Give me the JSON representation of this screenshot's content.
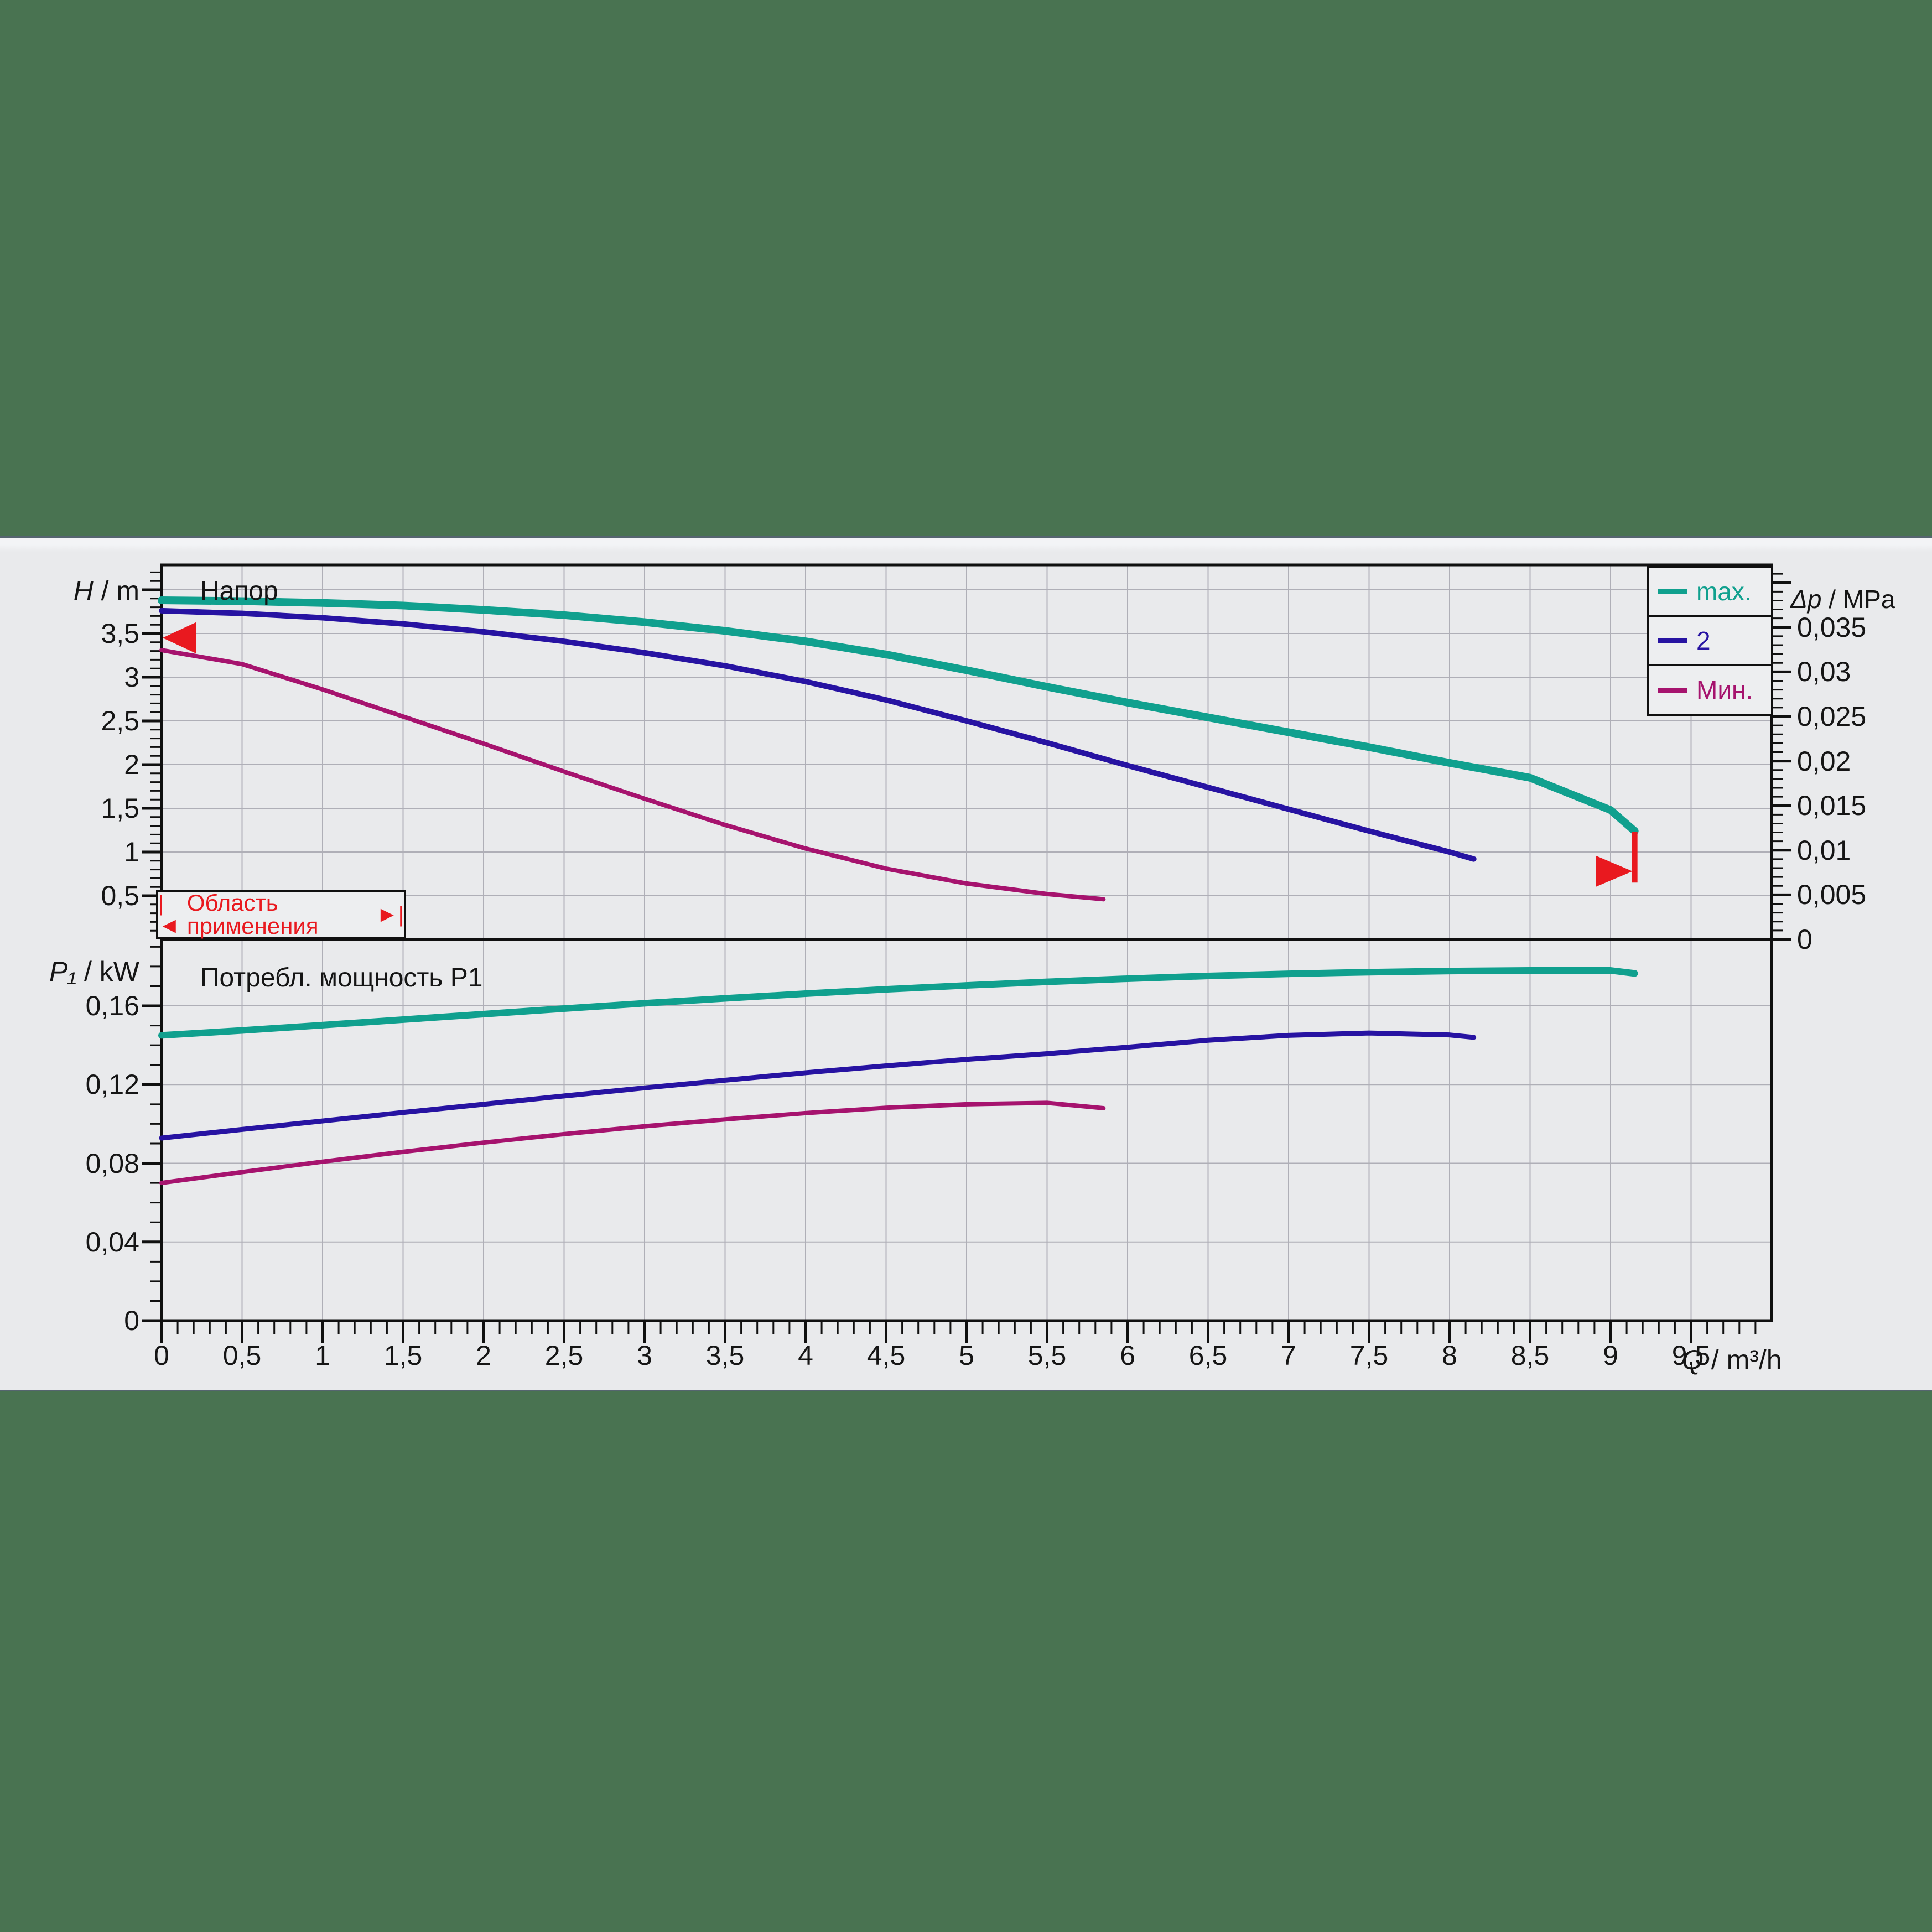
{
  "background_color": "#497351",
  "band_color": "#E9EAEC",
  "band_edge_color": "#55656F",
  "colors": {
    "max": "#10A08E",
    "mid": "#2713A2",
    "min": "#A6136E",
    "red": "#E9191F",
    "grid": "#AFAFB7",
    "axis": "#101010",
    "text": "#151515"
  },
  "legend": {
    "items": [
      {
        "id": "max",
        "label": "max."
      },
      {
        "id": "mid",
        "label": "2"
      },
      {
        "id": "min",
        "label": "Мин."
      }
    ]
  },
  "x_axis": {
    "title_var": "Q",
    "title_unit": " / m³/h",
    "min": 0,
    "max": 10,
    "major_step": 0.5,
    "minor_step": 0.1,
    "tick_values": [
      0,
      0.5,
      1,
      1.5,
      2,
      2.5,
      3,
      3.5,
      4,
      4.5,
      5,
      5.5,
      6,
      6.5,
      7,
      7.5,
      8,
      8.5,
      9,
      9.5
    ],
    "tick_labels": [
      "0",
      "0,5",
      "1",
      "1,5",
      "2",
      "2,5",
      "3",
      "3,5",
      "4",
      "4,5",
      "5",
      "5,5",
      "6",
      "6,5",
      "7",
      "7,5",
      "8",
      "8,5",
      "9",
      "9,5"
    ]
  },
  "chart_data": [
    {
      "id": "head",
      "type": "line",
      "title": "Напор",
      "xlabel": "Q / m³/h",
      "ylabel": "H / m",
      "y2label": "Δp / MPa",
      "xlim": [
        0,
        10
      ],
      "ylim": [
        0,
        4.28
      ],
      "y2lim": [
        0,
        0.0417
      ],
      "grid": "on",
      "y_axis": {
        "title_var": "H",
        "title_unit": " / m",
        "major_step": 0.5,
        "minor_step": 0.1,
        "max": 4.2,
        "grid_step": 0.5,
        "tick_values": [
          0.5,
          1,
          1.5,
          2,
          2.5,
          3,
          3.5
        ],
        "tick_labels": [
          "0,5",
          "1",
          "1,5",
          "2",
          "2,5",
          "3",
          "3,5"
        ]
      },
      "y2_axis": {
        "title_var": "Δp",
        "title_unit": " / MPa",
        "major_step": 0.005,
        "minor_step": 0.001,
        "max": 0.041,
        "tick_values": [
          0,
          0.005,
          0.01,
          0.015,
          0.02,
          0.025,
          0.03,
          0.035
        ],
        "tick_labels": [
          "0",
          "0,005",
          "0,01",
          "0,015",
          "0,02",
          "0,025",
          "0,03",
          "0,035"
        ]
      },
      "series": [
        {
          "id": "max",
          "name": "max.",
          "points": [
            [
              0,
              3.88
            ],
            [
              0.5,
              3.87
            ],
            [
              1,
              3.85
            ],
            [
              1.5,
              3.82
            ],
            [
              2,
              3.77
            ],
            [
              2.5,
              3.71
            ],
            [
              3,
              3.63
            ],
            [
              3.5,
              3.53
            ],
            [
              4,
              3.41
            ],
            [
              4.5,
              3.26
            ],
            [
              5,
              3.08
            ],
            [
              5.5,
              2.89
            ],
            [
              6,
              2.71
            ],
            [
              6.5,
              2.54
            ],
            [
              7,
              2.37
            ],
            [
              7.5,
              2.2
            ],
            [
              8,
              2.02
            ],
            [
              8.5,
              1.85
            ],
            [
              9,
              1.48
            ],
            [
              9.15,
              1.24
            ]
          ]
        },
        {
          "id": "mid",
          "name": "2",
          "points": [
            [
              0,
              3.76
            ],
            [
              0.5,
              3.73
            ],
            [
              1,
              3.68
            ],
            [
              1.5,
              3.61
            ],
            [
              2,
              3.52
            ],
            [
              2.5,
              3.41
            ],
            [
              3,
              3.28
            ],
            [
              3.5,
              3.13
            ],
            [
              4,
              2.95
            ],
            [
              4.5,
              2.74
            ],
            [
              5,
              2.5
            ],
            [
              5.5,
              2.25
            ],
            [
              6,
              1.99
            ],
            [
              6.5,
              1.74
            ],
            [
              7,
              1.49
            ],
            [
              7.5,
              1.24
            ],
            [
              8,
              1.0
            ],
            [
              8.15,
              0.92
            ]
          ]
        },
        {
          "id": "min",
          "name": "Мин.",
          "points": [
            [
              0,
              3.31
            ],
            [
              0.5,
              3.15
            ],
            [
              1,
              2.86
            ],
            [
              1.5,
              2.55
            ],
            [
              2,
              2.24
            ],
            [
              2.5,
              1.92
            ],
            [
              3,
              1.61
            ],
            [
              3.5,
              1.31
            ],
            [
              4,
              1.04
            ],
            [
              4.5,
              0.81
            ],
            [
              5,
              0.64
            ],
            [
              5.5,
              0.52
            ],
            [
              5.85,
              0.46
            ]
          ]
        }
      ],
      "annotations": {
        "left_arrow_h": 3.45,
        "range_box": {
          "left_cap": "|◄",
          "label": "Область применения",
          "right_cap": "►|"
        },
        "end_marker": {
          "q": 9.15,
          "h_top": 1.23,
          "h_bottom": 0.65,
          "arrow_h": 0.78
        }
      }
    },
    {
      "id": "power",
      "type": "line",
      "title": "Потребл. мощность P1",
      "xlabel": "Q / m³/h",
      "ylabel": "P₁ / kW",
      "xlim": [
        0,
        10
      ],
      "ylim": [
        0,
        0.194
      ],
      "grid": "on",
      "y_axis": {
        "title_var": "P₁",
        "title_unit": " / kW",
        "major_step": 0.04,
        "minor_step": 0.01,
        "max": 0.19,
        "grid_step": 0.04,
        "tick_values": [
          0,
          0.04,
          0.08,
          0.12,
          0.16
        ],
        "tick_labels": [
          "0",
          "0,04",
          "0,08",
          "0,12",
          "0,16"
        ]
      },
      "series": [
        {
          "id": "max",
          "name": "max.",
          "points": [
            [
              0,
              0.145
            ],
            [
              0.5,
              0.1475
            ],
            [
              1,
              0.1502
            ],
            [
              1.5,
              0.153
            ],
            [
              2,
              0.1558
            ],
            [
              2.5,
              0.1586
            ],
            [
              3,
              0.1613
            ],
            [
              3.5,
              0.1638
            ],
            [
              4,
              0.1662
            ],
            [
              4.5,
              0.1684
            ],
            [
              5,
              0.1704
            ],
            [
              5.5,
              0.1722
            ],
            [
              6,
              0.1738
            ],
            [
              6.5,
              0.1752
            ],
            [
              7,
              0.1763
            ],
            [
              7.5,
              0.1771
            ],
            [
              8,
              0.1777
            ],
            [
              8.5,
              0.178
            ],
            [
              9,
              0.178
            ],
            [
              9.15,
              0.1765
            ]
          ]
        },
        {
          "id": "mid",
          "name": "2",
          "points": [
            [
              0,
              0.0928
            ],
            [
              0.5,
              0.0972
            ],
            [
              1,
              0.1015
            ],
            [
              1.5,
              0.1058
            ],
            [
              2,
              0.11
            ],
            [
              2.5,
              0.1142
            ],
            [
              3,
              0.1183
            ],
            [
              3.5,
              0.1222
            ],
            [
              4,
              0.126
            ],
            [
              4.5,
              0.1295
            ],
            [
              5,
              0.1328
            ],
            [
              5.5,
              0.1357
            ],
            [
              6,
              0.139
            ],
            [
              6.5,
              0.1425
            ],
            [
              7,
              0.145
            ],
            [
              7.5,
              0.1462
            ],
            [
              8,
              0.1452
            ],
            [
              8.15,
              0.144
            ]
          ]
        },
        {
          "id": "min",
          "name": "Мин.",
          "points": [
            [
              0,
              0.07
            ],
            [
              0.5,
              0.0755
            ],
            [
              1,
              0.0808
            ],
            [
              1.5,
              0.0858
            ],
            [
              2,
              0.0905
            ],
            [
              2.5,
              0.0948
            ],
            [
              3,
              0.0988
            ],
            [
              3.5,
              0.1023
            ],
            [
              4,
              0.1055
            ],
            [
              4.5,
              0.1082
            ],
            [
              5,
              0.11
            ],
            [
              5.5,
              0.1107
            ],
            [
              5.85,
              0.108
            ]
          ]
        }
      ]
    }
  ]
}
